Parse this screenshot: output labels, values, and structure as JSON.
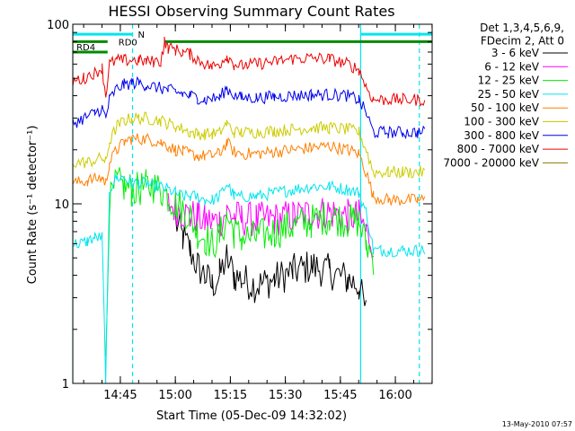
{
  "chart_data": {
    "type": "line",
    "title": "HESSI Observing Summary Count Rates",
    "xlabel": "Start Time (05-Dec-09 14:32:02)",
    "ylabel": "Count Rate (s⁻¹ detector⁻¹)",
    "x_unit": "minutes since 14:32:02",
    "xlim": [
      0,
      98
    ],
    "ylim": [
      1,
      100
    ],
    "y_scale": "log",
    "x_ticks": [
      {
        "value": 12.97,
        "label": "14:45"
      },
      {
        "value": 27.97,
        "label": "15:00"
      },
      {
        "value": 42.97,
        "label": "15:15"
      },
      {
        "value": 57.97,
        "label": "15:30"
      },
      {
        "value": 72.97,
        "label": "15:45"
      },
      {
        "value": 87.97,
        "label": "16:00"
      }
    ],
    "y_ticks": [
      {
        "value": 1,
        "label": "1"
      },
      {
        "value": 10,
        "label": "10"
      },
      {
        "value": 100,
        "label": "100"
      }
    ],
    "legend_header": [
      "Det 1,3,4,5,6,9,",
      "FDecim 2, Att 0"
    ],
    "legend_position": "right",
    "grid": false,
    "timestamp": "13-May-2010 07:57",
    "vlines": [
      {
        "x": 0.0,
        "color": "#00e5ee",
        "style": "solid"
      },
      {
        "x": 16.3,
        "color": "#00e5ee",
        "style": "dashed"
      },
      {
        "x": 78.5,
        "color": "#00e5ee",
        "style": "solid"
      },
      {
        "x": 94.5,
        "color": "#00e5ee",
        "style": "dashed"
      }
    ],
    "flags": [
      {
        "label": "N",
        "color": "#00e5ee",
        "y": 88,
        "segments": [
          [
            0,
            16.3
          ],
          [
            78.5,
            98
          ]
        ]
      },
      {
        "label": "RD0",
        "color": "#008a00",
        "y": 80,
        "segments": [
          [
            0,
            9.5
          ],
          [
            25.2,
            98
          ]
        ]
      },
      {
        "label": "RD4",
        "color": "#008a00",
        "y": 70,
        "segments": [
          [
            0,
            9.5
          ]
        ]
      }
    ],
    "series": [
      {
        "name": "3 - 6 keV",
        "color": "#000000",
        "x": [
          0,
          4,
          9,
          12,
          14,
          16,
          20,
          25,
          28,
          30,
          32,
          34,
          36,
          38,
          40,
          42,
          44,
          46,
          50,
          55,
          60,
          65,
          70,
          75,
          78,
          80,
          82
        ],
        "y": [
          null,
          null,
          null,
          null,
          null,
          null,
          null,
          null,
          8,
          6.5,
          5.5,
          4.5,
          4,
          3.5,
          4,
          5,
          4,
          3.8,
          3.5,
          3.8,
          4.2,
          4.5,
          4.2,
          3.8,
          3.5,
          2.5,
          null
        ]
      },
      {
        "name": "6 - 12 keV",
        "color": "#ff00ff",
        "x": [
          26,
          28,
          30,
          32,
          34,
          36,
          38,
          40,
          42,
          44,
          46,
          50,
          55,
          60,
          65,
          70,
          75,
          78,
          80,
          82
        ],
        "y": [
          10,
          9.5,
          9,
          8.5,
          8.5,
          8,
          8,
          8,
          9,
          8.5,
          8.2,
          8.2,
          8.2,
          8.5,
          8.8,
          9,
          8.5,
          8.5,
          7,
          6
        ]
      },
      {
        "name": "12 - 25 keV",
        "color": "#00ee00",
        "x": [
          9,
          10,
          12,
          14,
          16,
          18,
          20,
          22,
          24,
          26,
          28,
          30,
          32,
          34,
          36,
          38,
          40,
          42,
          44,
          46,
          50,
          55,
          60,
          65,
          70,
          75,
          78,
          80,
          82
        ],
        "y": [
          1.2,
          10,
          13,
          12.5,
          12,
          12,
          12.5,
          12.5,
          12,
          11,
          10,
          9.5,
          8.5,
          7,
          6.5,
          6,
          6.5,
          8.5,
          7,
          6.5,
          6.5,
          7,
          7.5,
          8,
          8.5,
          8,
          8,
          6,
          5
        ]
      },
      {
        "name": "25 - 50 keV",
        "color": "#00e5ee",
        "x": [
          0,
          2,
          4,
          6,
          8,
          9,
          10,
          12,
          14,
          16,
          18,
          20,
          22,
          24,
          26,
          28,
          30,
          32,
          34,
          36,
          38,
          40,
          42,
          44,
          46,
          50,
          55,
          60,
          65,
          70,
          75,
          78,
          80,
          82,
          84,
          86,
          90,
          94,
          96
        ],
        "y": [
          6,
          6,
          6.2,
          6.5,
          6.5,
          1,
          12,
          14,
          14,
          13,
          13,
          13,
          12.5,
          12.5,
          12,
          11.5,
          11,
          11,
          11,
          10.5,
          10.5,
          11,
          13,
          11,
          11,
          11,
          11.5,
          12,
          12.5,
          12.5,
          12,
          11.5,
          9,
          5.5,
          5.5,
          5.5,
          5.5,
          5.5,
          5.5
        ]
      },
      {
        "name": "50 - 100 keV",
        "color": "#ff7f00",
        "x": [
          0,
          4,
          8,
          9,
          10,
          12,
          14,
          16,
          18,
          20,
          22,
          24,
          26,
          28,
          30,
          32,
          34,
          36,
          38,
          40,
          42,
          44,
          46,
          50,
          55,
          60,
          65,
          70,
          75,
          78,
          80,
          82,
          86,
          90,
          94,
          96
        ],
        "y": [
          13,
          13.5,
          14,
          13,
          17,
          20,
          22,
          23,
          23,
          23,
          22.5,
          22,
          21,
          20,
          19.5,
          19,
          18.5,
          18.5,
          18.5,
          19,
          22,
          19.5,
          19,
          19,
          19.5,
          20,
          20.5,
          21,
          20,
          19,
          15,
          11,
          10.5,
          10.5,
          10.5,
          10.5
        ]
      },
      {
        "name": "100 - 300 keV",
        "color": "#cccc00",
        "x": [
          0,
          4,
          8,
          9,
          10,
          12,
          14,
          16,
          18,
          20,
          22,
          24,
          26,
          28,
          30,
          32,
          34,
          36,
          38,
          40,
          42,
          44,
          46,
          50,
          55,
          60,
          65,
          70,
          75,
          78,
          80,
          82,
          86,
          90,
          94,
          96
        ],
        "y": [
          17,
          17,
          18,
          17,
          22,
          27,
          29,
          30,
          30,
          30,
          29.5,
          29,
          28,
          27,
          26,
          25,
          24.5,
          24.5,
          24.5,
          25,
          28,
          25,
          25,
          25,
          25.5,
          26,
          26.5,
          26.5,
          26,
          25,
          20,
          15,
          15,
          15,
          15,
          15
        ]
      },
      {
        "name": "300 - 800 keV",
        "color": "#0000ee",
        "x": [
          0,
          3,
          6,
          8,
          9,
          10,
          12,
          14,
          16,
          18,
          20,
          22,
          24,
          26,
          28,
          30,
          32,
          34,
          36,
          38,
          40,
          42,
          44,
          46,
          50,
          55,
          60,
          65,
          70,
          75,
          78,
          80,
          82,
          86,
          90,
          94,
          96
        ],
        "y": [
          28,
          30,
          32,
          34,
          30,
          38,
          44,
          46,
          47,
          47,
          46,
          45,
          44,
          43,
          42,
          41,
          40,
          39,
          38,
          38.5,
          39,
          44,
          40,
          39,
          39,
          39.5,
          40,
          40.5,
          40.5,
          40,
          38,
          32,
          25,
          25,
          25,
          25,
          25
        ]
      },
      {
        "name": "800 - 7000 keV",
        "color": "#ee0000",
        "x": [
          0,
          3,
          6,
          8,
          9,
          10,
          12,
          14,
          16,
          18,
          20,
          22,
          24,
          25,
          26,
          28,
          30,
          32,
          34,
          36,
          38,
          40,
          42,
          44,
          46,
          50,
          55,
          60,
          65,
          70,
          75,
          78,
          80,
          82,
          86,
          90,
          94,
          96
        ],
        "y": [
          48,
          50,
          54,
          57,
          40,
          60,
          63,
          63,
          63,
          63,
          62,
          62,
          62,
          80,
          74,
          72,
          70,
          68,
          64,
          60,
          58,
          60,
          67,
          60,
          59,
          60,
          62,
          64,
          65,
          64,
          60,
          56,
          45,
          38,
          38,
          38,
          38,
          38
        ]
      },
      {
        "name": "7000 - 20000 keV",
        "color": "#8b7500",
        "x": [],
        "y": []
      }
    ]
  }
}
